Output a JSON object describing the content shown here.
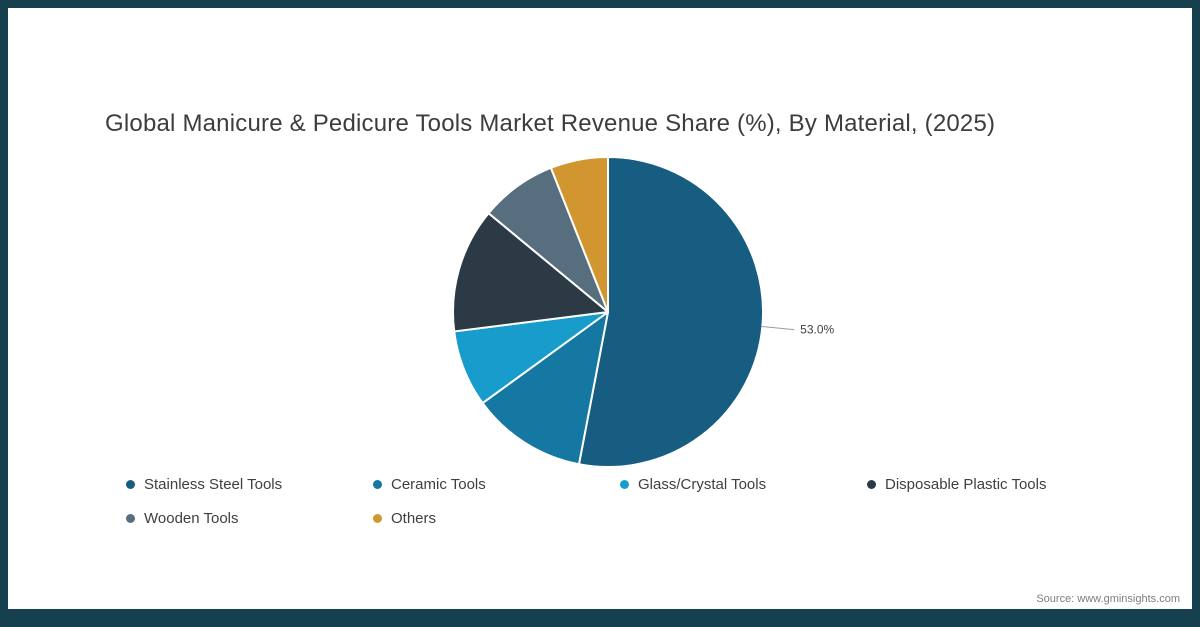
{
  "page": {
    "frame_color": "#17404f",
    "background": "#ffffff",
    "source_note": "Source: www.gminsights.com"
  },
  "chart_data": {
    "type": "pie",
    "title": "Global Manicure & Pedicure Tools Market Revenue Share (%), By Material, (2025)",
    "unit": "%",
    "direction": "clockwise",
    "start_angle_deg": 0,
    "legend_position": "bottom",
    "slices": [
      {
        "label": "Stainless Steel Tools",
        "value": 53.0,
        "color": "#175d82"
      },
      {
        "label": "Ceramic Tools",
        "value": 12.0,
        "color": "#1578a2"
      },
      {
        "label": "Glass/Crystal Tools",
        "value": 8.0,
        "color": "#189ccb"
      },
      {
        "label": "Disposable Plastic Tools",
        "value": 13.0,
        "color": "#2c3a46"
      },
      {
        "label": "Wooden Tools",
        "value": 8.0,
        "color": "#566e7d"
      },
      {
        "label": "Others",
        "value": 6.0,
        "color": "#d1962f"
      }
    ],
    "callouts": [
      {
        "slice": "Stainless Steel Tools",
        "text": "53.0%"
      }
    ]
  }
}
